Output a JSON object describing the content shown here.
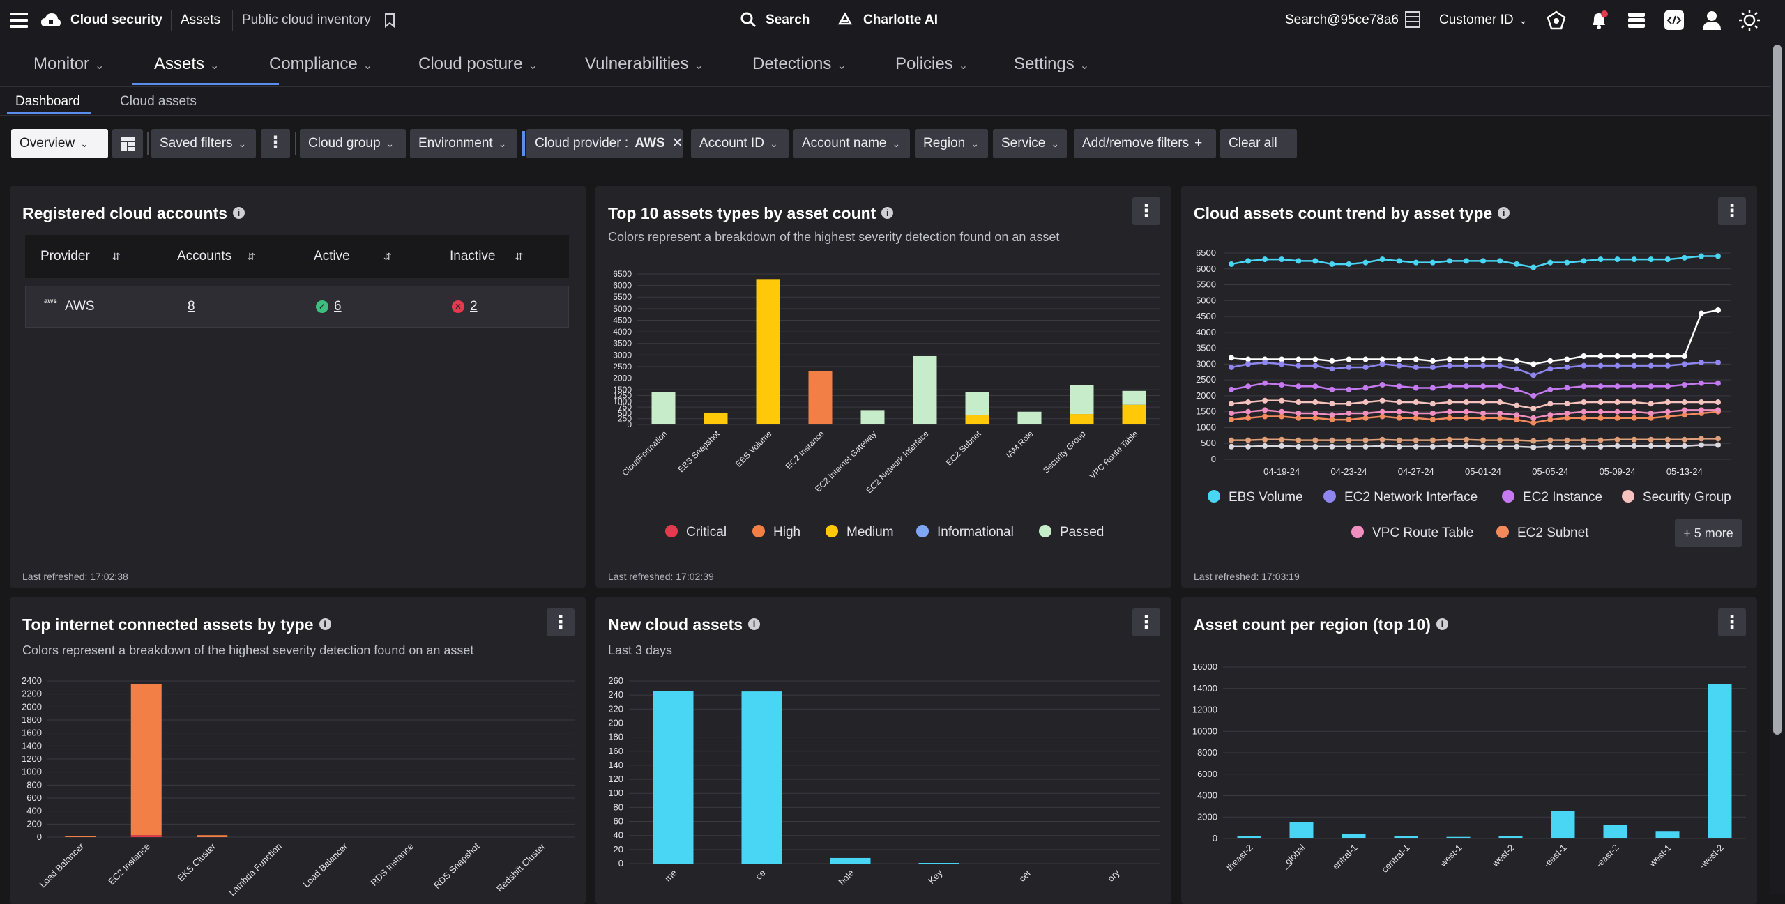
{
  "topbar": {
    "app_name": "Cloud security",
    "crumb_assets": "Assets",
    "crumb_page": "Public cloud inventory",
    "search_label": "Search",
    "charlotte_label": "Charlotte AI",
    "user": "Search@95ce78a6",
    "customer_id_label": "Customer ID"
  },
  "nav": {
    "items": [
      {
        "label": "Monitor"
      },
      {
        "label": "Assets"
      },
      {
        "label": "Compliance"
      },
      {
        "label": "Cloud posture"
      },
      {
        "label": "Vulnerabilities"
      },
      {
        "label": "Detections"
      },
      {
        "label": "Policies"
      },
      {
        "label": "Settings"
      }
    ],
    "active": "Assets"
  },
  "subtabs": {
    "dashboard": "Dashboard",
    "cloud_assets": "Cloud assets"
  },
  "filters": {
    "view": "Overview",
    "saved_filters": "Saved filters",
    "cloud_group": "Cloud group",
    "environment": "Environment",
    "cloud_provider_label": "Cloud provider :",
    "cloud_provider_value": "AWS",
    "account_id": "Account ID",
    "account_name": "Account name",
    "region": "Region",
    "service": "Service",
    "add_remove": "Add/remove filters",
    "clear_all": "Clear all"
  },
  "accounts_card": {
    "title": "Registered cloud accounts",
    "headers": [
      "Provider",
      "Accounts",
      "Active",
      "Inactive"
    ],
    "row": {
      "provider": "AWS",
      "provider_logo": "aws",
      "accounts": "8",
      "active": "6",
      "inactive": "2"
    },
    "refreshed": "Last refreshed: 17:02:38"
  },
  "top10_card": {
    "title": "Top 10 assets types by asset count",
    "subtitle": "Colors represent a breakdown of the highest severity detection found on an asset",
    "refreshed": "Last refreshed: 17:02:39",
    "legend": [
      {
        "name": "Critical",
        "color": "#e5394d"
      },
      {
        "name": "High",
        "color": "#f28046"
      },
      {
        "name": "Medium",
        "color": "#ffc90a"
      },
      {
        "name": "Informational",
        "color": "#7ea6f5"
      },
      {
        "name": "Passed",
        "color": "#c7ecc9"
      }
    ]
  },
  "trend_card": {
    "title": "Cloud assets count trend by asset type",
    "refreshed": "Last refreshed: 17:03:19",
    "legend": [
      {
        "name": "EBS Volume",
        "color": "#49d6f5"
      },
      {
        "name": "EC2 Network Interface",
        "color": "#8f86f2"
      },
      {
        "name": "EC2 Instance",
        "color": "#c57af2"
      },
      {
        "name": "Security Group",
        "color": "#f6c2bd"
      },
      {
        "name": "VPC Route Table",
        "color": "#f08fc0"
      },
      {
        "name": "EC2 Subnet",
        "color": "#f28a5c"
      }
    ],
    "more": "+ 5 more"
  },
  "internet_card": {
    "title": "Top internet connected assets by type",
    "subtitle": "Colors represent a breakdown of the highest severity detection found on an asset"
  },
  "new_assets_card": {
    "title": "New cloud assets",
    "subtitle": "Last 3 days"
  },
  "region_card": {
    "title": "Asset count per region (top 10)"
  },
  "chart_data": [
    {
      "type": "bar",
      "title": "Top 10 assets types by asset count",
      "categories": [
        "CloudFormation",
        "EBS Snapshot",
        "EBS Volume",
        "EC2 Instance",
        "EC2 Internet Gateway",
        "EC2 Network Interface",
        "EC2 Subnet",
        "IAM Role",
        "Security Group",
        "VPC Route Table"
      ],
      "series": [
        {
          "name": "Critical",
          "values": [
            0,
            0,
            0,
            0,
            0,
            0,
            0,
            0,
            0,
            0
          ]
        },
        {
          "name": "High",
          "values": [
            0,
            0,
            0,
            2300,
            0,
            0,
            0,
            0,
            0,
            0
          ]
        },
        {
          "name": "Medium",
          "values": [
            0,
            500,
            6250,
            0,
            0,
            0,
            400,
            0,
            450,
            850
          ]
        },
        {
          "name": "Informational",
          "values": [
            0,
            0,
            0,
            0,
            0,
            0,
            0,
            0,
            0,
            0
          ]
        },
        {
          "name": "Passed",
          "values": [
            1400,
            0,
            0,
            0,
            620,
            2950,
            1000,
            550,
            1250,
            600
          ]
        }
      ],
      "yticks": [
        0,
        250,
        500,
        750,
        1000,
        1250,
        1500,
        2000,
        2500,
        3000,
        3500,
        4000,
        4500,
        5000,
        5500,
        6000,
        6500
      ],
      "ylim": [
        0,
        6500
      ]
    },
    {
      "type": "line",
      "title": "Cloud assets count trend by asset type",
      "x_ticks": [
        "04-19-24",
        "04-23-24",
        "04-27-24",
        "05-01-24",
        "05-05-24",
        "05-09-24",
        "05-13-24"
      ],
      "ylim": [
        0,
        6500
      ],
      "yticks": [
        0,
        500,
        1000,
        1500,
        2000,
        2500,
        3000,
        3500,
        4000,
        4500,
        5000,
        5500,
        6000,
        6500
      ],
      "series": [
        {
          "name": "EBS Volume",
          "values": [
            6150,
            6250,
            6300,
            6300,
            6250,
            6250,
            6150,
            6150,
            6200,
            6300,
            6250,
            6200,
            6200,
            6250,
            6250,
            6250,
            6250,
            6150,
            6050,
            6200,
            6200,
            6250,
            6300,
            6300,
            6300,
            6300,
            6300,
            6350,
            6400,
            6400
          ]
        },
        {
          "name": "EC2 Network Interface",
          "values": [
            2900,
            3000,
            3050,
            3000,
            2950,
            2950,
            2850,
            2900,
            2900,
            3000,
            2950,
            2900,
            2900,
            2950,
            2950,
            2950,
            2950,
            2850,
            2650,
            2850,
            2900,
            2950,
            2950,
            2950,
            2950,
            2950,
            2950,
            3000,
            3050,
            3050
          ]
        },
        {
          "name": "EC2 Instance",
          "values": [
            2200,
            2300,
            2400,
            2350,
            2300,
            2300,
            2200,
            2200,
            2250,
            2350,
            2300,
            2250,
            2250,
            2300,
            2300,
            2300,
            2300,
            2200,
            2000,
            2200,
            2250,
            2300,
            2300,
            2300,
            2300,
            2300,
            2300,
            2350,
            2400,
            2400
          ]
        },
        {
          "name": "Security Group",
          "values": [
            1750,
            1800,
            1850,
            1850,
            1800,
            1800,
            1750,
            1750,
            1800,
            1850,
            1800,
            1800,
            1750,
            1800,
            1800,
            1800,
            1800,
            1700,
            1600,
            1750,
            1750,
            1800,
            1800,
            1800,
            1800,
            1750,
            1800,
            1800,
            1800,
            1800
          ]
        },
        {
          "name": "VPC Route Table",
          "values": [
            1450,
            1500,
            1550,
            1500,
            1450,
            1450,
            1400,
            1450,
            1450,
            1500,
            1500,
            1450,
            1450,
            1500,
            1500,
            1450,
            1450,
            1400,
            1300,
            1400,
            1450,
            1500,
            1500,
            1500,
            1500,
            1450,
            1500,
            1550,
            1550,
            1550
          ]
        },
        {
          "name": "EC2 Subnet",
          "values": [
            1250,
            1300,
            1350,
            1350,
            1300,
            1300,
            1250,
            1250,
            1300,
            1350,
            1300,
            1300,
            1250,
            1300,
            1300,
            1300,
            1300,
            1250,
            1150,
            1250,
            1300,
            1300,
            1300,
            1300,
            1300,
            1300,
            1350,
            1400,
            1450,
            1500
          ]
        },
        {
          "name": "",
          "color": "#ffffff",
          "values": [
            3200,
            3150,
            3150,
            3150,
            3150,
            3150,
            3100,
            3150,
            3150,
            3150,
            3150,
            3150,
            3100,
            3150,
            3150,
            3150,
            3150,
            3100,
            3000,
            3100,
            3150,
            3250,
            3250,
            3250,
            3250,
            3250,
            3250,
            3250,
            4600,
            4700
          ]
        },
        {
          "name": "",
          "color": "#e0a07a",
          "values": [
            600,
            600,
            620,
            620,
            600,
            600,
            600,
            600,
            600,
            620,
            600,
            600,
            600,
            620,
            620,
            600,
            600,
            600,
            580,
            600,
            600,
            600,
            600,
            620,
            620,
            620,
            620,
            620,
            650,
            650
          ]
        },
        {
          "name": "",
          "color": "#d9d9df",
          "values": [
            400,
            400,
            420,
            420,
            400,
            400,
            400,
            400,
            400,
            420,
            400,
            400,
            400,
            420,
            420,
            400,
            400,
            400,
            380,
            400,
            400,
            400,
            400,
            420,
            420,
            420,
            420,
            420,
            450,
            450
          ]
        }
      ]
    },
    {
      "type": "bar",
      "title": "Top internet connected assets by type",
      "categories": [
        "Load Balancer",
        "EC2 Instance",
        "EKS Cluster",
        "Lambda Function",
        "Load Balancer",
        "RDS Instance",
        "RDS Snapshot",
        "Redshift Cluster"
      ],
      "series": [
        {
          "name": "Critical",
          "values": [
            0,
            30,
            0,
            0,
            0,
            0,
            0,
            0
          ]
        },
        {
          "name": "High",
          "values": [
            20,
            2320,
            30,
            0,
            0,
            0,
            0,
            0
          ]
        }
      ],
      "yticks": [
        0,
        200,
        400,
        600,
        800,
        1000,
        1200,
        1400,
        1600,
        1800,
        2000,
        2200,
        2400
      ],
      "ylim": [
        0,
        2400
      ]
    },
    {
      "type": "bar",
      "title": "New cloud assets",
      "categories": [
        "me",
        "ce",
        "hole",
        "Key",
        "cer",
        "ory"
      ],
      "values": [
        246,
        245,
        8,
        1,
        0,
        0
      ],
      "yticks": [
        0,
        20,
        40,
        60,
        80,
        100,
        120,
        140,
        160,
        180,
        200,
        220,
        240,
        260
      ],
      "ylim": [
        0,
        260
      ]
    },
    {
      "type": "bar",
      "title": "Asset count per region (top 10)",
      "categories": [
        "theast-2",
        "_global",
        "entral-1",
        "central-1",
        "west-1",
        "west-2",
        "-east-1",
        "-east-2",
        "west-1",
        "-west-2"
      ],
      "values": [
        200,
        1550,
        450,
        200,
        150,
        250,
        2600,
        1300,
        700,
        14400
      ],
      "yticks": [
        0,
        2000,
        4000,
        6000,
        8000,
        10000,
        12000,
        14000,
        16000
      ],
      "ylim": [
        0,
        16000
      ]
    }
  ]
}
